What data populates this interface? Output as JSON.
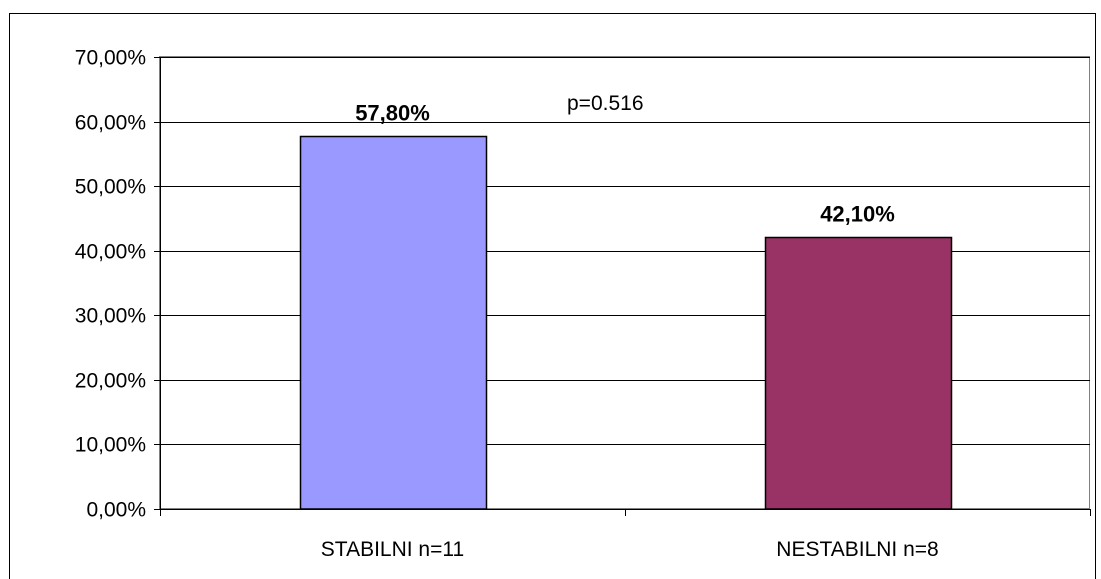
{
  "chart_data": {
    "type": "bar",
    "categories": [
      "STABILNI n=11",
      "NESTABILNI n=8"
    ],
    "values": [
      57.8,
      42.1
    ],
    "data_labels": [
      "57,80%",
      "42,10%"
    ],
    "bar_colors": [
      "#9999FF",
      "#993366"
    ],
    "ylim": [
      0,
      70
    ],
    "yticks": [
      0,
      10,
      20,
      30,
      40,
      50,
      60,
      70
    ],
    "ytick_labels": [
      "0,00%",
      "10,00%",
      "20,00%",
      "30,00%",
      "40,00%",
      "50,00%",
      "60,00%",
      "70,00%"
    ],
    "annotation": "p=0.516",
    "grid": true,
    "legend": "none",
    "title": "",
    "xlabel": "",
    "ylabel": ""
  }
}
